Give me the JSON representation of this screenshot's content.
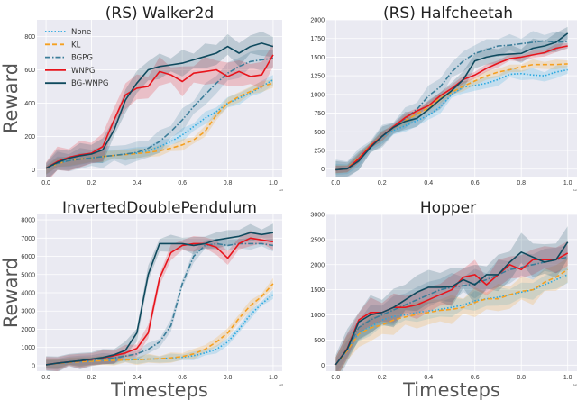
{
  "chart_data": [
    {
      "type": "line",
      "title": "(RS) Walker2d",
      "xlabel": "",
      "ylabel": "Reward",
      "x_offset_label": "1e6",
      "xlim": [
        -0.04,
        1.04
      ],
      "ylim": [
        -40,
        900
      ],
      "xticks": [
        0.0,
        0.2,
        0.4,
        0.6,
        0.8,
        1.0
      ],
      "yticks": [
        0,
        200,
        400,
        600,
        800
      ],
      "grid": true,
      "legend": "top-left",
      "x": [
        0,
        0.05,
        0.1,
        0.15,
        0.2,
        0.25,
        0.3,
        0.35,
        0.4,
        0.45,
        0.5,
        0.55,
        0.6,
        0.65,
        0.7,
        0.75,
        0.8,
        0.85,
        0.9,
        0.95,
        1.0
      ],
      "series": [
        {
          "name": "None",
          "values": [
            10,
            40,
            55,
            65,
            72,
            80,
            87,
            95,
            100,
            115,
            140,
            170,
            210,
            260,
            310,
            350,
            400,
            430,
            460,
            500,
            540
          ],
          "spread": 40
        },
        {
          "name": "KL",
          "values": [
            10,
            38,
            55,
            65,
            72,
            80,
            87,
            92,
            98,
            105,
            115,
            130,
            150,
            180,
            230,
            330,
            400,
            440,
            470,
            500,
            520
          ],
          "spread": 35
        },
        {
          "name": "BGPG",
          "values": [
            10,
            40,
            55,
            65,
            72,
            80,
            87,
            95,
            105,
            130,
            170,
            230,
            300,
            380,
            450,
            520,
            580,
            620,
            650,
            660,
            670
          ],
          "spread": 70
        },
        {
          "name": "WNPG",
          "values": [
            10,
            50,
            75,
            90,
            100,
            140,
            300,
            450,
            490,
            500,
            590,
            570,
            530,
            580,
            590,
            600,
            560,
            590,
            560,
            570,
            690
          ],
          "spread": 90
        },
        {
          "name": "BG-WNPG",
          "values": [
            10,
            45,
            70,
            85,
            95,
            120,
            240,
            420,
            520,
            600,
            620,
            630,
            640,
            660,
            680,
            700,
            740,
            700,
            740,
            760,
            740
          ],
          "spread": 80
        }
      ]
    },
    {
      "type": "line",
      "title": "(RS) Halfcheetah",
      "xlabel": "",
      "ylabel": "",
      "x_offset_label": "1e6",
      "xlim": [
        -0.04,
        1.04
      ],
      "ylim": [
        -100,
        2000
      ],
      "xticks": [
        0.0,
        0.2,
        0.4,
        0.6,
        0.8,
        1.0
      ],
      "yticks": [
        0,
        250,
        500,
        750,
        1000,
        1250,
        1500,
        1750,
        2000
      ],
      "grid": true,
      "x": [
        0,
        0.05,
        0.1,
        0.15,
        0.2,
        0.25,
        0.3,
        0.35,
        0.4,
        0.45,
        0.5,
        0.55,
        0.6,
        0.65,
        0.7,
        0.75,
        0.8,
        0.85,
        0.9,
        0.95,
        1.0
      ],
      "series": [
        {
          "name": "None",
          "values": [
            -10,
            5,
            120,
            300,
            430,
            520,
            580,
            650,
            720,
            830,
            1000,
            1100,
            1120,
            1150,
            1200,
            1270,
            1280,
            1260,
            1250,
            1300,
            1330
          ],
          "spread": 90
        },
        {
          "name": "KL",
          "values": [
            -10,
            10,
            150,
            320,
            440,
            560,
            650,
            740,
            820,
            950,
            1030,
            1110,
            1180,
            1250,
            1300,
            1330,
            1370,
            1400,
            1400,
            1400,
            1410
          ],
          "spread": 70
        },
        {
          "name": "BGPG",
          "values": [
            -10,
            5,
            130,
            300,
            440,
            560,
            680,
            800,
            980,
            1100,
            1300,
            1450,
            1550,
            1600,
            1650,
            1660,
            1680,
            1700,
            1720,
            1700,
            1710
          ],
          "spread": 150
        },
        {
          "name": "WNPG",
          "values": [
            -10,
            5,
            140,
            310,
            440,
            570,
            690,
            780,
            850,
            980,
            1080,
            1200,
            1260,
            1350,
            1420,
            1480,
            1500,
            1530,
            1560,
            1620,
            1650
          ],
          "spread": 60
        },
        {
          "name": "BG-WNPG",
          "values": [
            -10,
            5,
            110,
            290,
            440,
            560,
            640,
            680,
            800,
            930,
            1050,
            1200,
            1450,
            1500,
            1530,
            1540,
            1550,
            1620,
            1650,
            1700,
            1820
          ],
          "spread": 130
        }
      ]
    },
    {
      "type": "line",
      "title": "InvertedDoublePendulum",
      "xlabel": "Timesteps",
      "ylabel": "Reward",
      "x_offset_label": "1e6",
      "xlim": [
        -0.04,
        1.04
      ],
      "ylim": [
        -300,
        8300
      ],
      "xticks": [
        0.0,
        0.2,
        0.4,
        0.6,
        0.8,
        1.0
      ],
      "yticks": [
        0,
        1000,
        2000,
        3000,
        4000,
        5000,
        6000,
        7000,
        8000
      ],
      "grid": true,
      "x": [
        0,
        0.05,
        0.1,
        0.15,
        0.2,
        0.25,
        0.3,
        0.35,
        0.4,
        0.45,
        0.5,
        0.55,
        0.6,
        0.65,
        0.7,
        0.75,
        0.8,
        0.85,
        0.9,
        0.95,
        1.0
      ],
      "series": [
        {
          "name": "None",
          "values": [
            50,
            120,
            180,
            220,
            250,
            280,
            300,
            320,
            340,
            360,
            380,
            420,
            460,
            550,
            700,
            900,
            1300,
            2000,
            2800,
            3400,
            3900
          ],
          "spread": 250
        },
        {
          "name": "KL",
          "values": [
            50,
            120,
            180,
            220,
            250,
            280,
            300,
            320,
            340,
            360,
            380,
            430,
            500,
            650,
            900,
            1300,
            1800,
            2600,
            3300,
            3800,
            4500
          ],
          "spread": 300
        },
        {
          "name": "BGPG",
          "values": [
            50,
            130,
            200,
            260,
            310,
            370,
            430,
            530,
            650,
            900,
            1300,
            2200,
            4500,
            6000,
            6600,
            6700,
            6600,
            6700,
            6700,
            6700,
            6600
          ],
          "spread": 350
        },
        {
          "name": "WNPG",
          "values": [
            50,
            140,
            210,
            270,
            350,
            430,
            550,
            700,
            950,
            1800,
            4800,
            6200,
            6600,
            6700,
            6700,
            6500,
            5900,
            6700,
            7000,
            6900,
            6800
          ],
          "spread": 450
        },
        {
          "name": "BG-WNPG",
          "values": [
            50,
            140,
            210,
            280,
            360,
            450,
            600,
            850,
            1800,
            5000,
            6700,
            6700,
            6700,
            6600,
            6700,
            6900,
            7000,
            7100,
            7300,
            7200,
            7300
          ],
          "spread": 500
        }
      ]
    },
    {
      "type": "line",
      "title": "Hopper",
      "xlabel": "Timesteps",
      "ylabel": "",
      "x_offset_label": "1e6",
      "xlim": [
        -0.04,
        1.04
      ],
      "ylim": [
        -120,
        3000
      ],
      "xticks": [
        0.0,
        0.2,
        0.4,
        0.6,
        0.8,
        1.0
      ],
      "yticks": [
        0,
        500,
        1000,
        1500,
        2000,
        2500,
        3000
      ],
      "grid": true,
      "x": [
        0,
        0.05,
        0.1,
        0.15,
        0.2,
        0.25,
        0.3,
        0.35,
        0.4,
        0.45,
        0.5,
        0.55,
        0.6,
        0.65,
        0.7,
        0.75,
        0.8,
        0.85,
        0.9,
        0.95,
        1.0
      ],
      "series": [
        {
          "name": "None",
          "values": [
            10,
            300,
            650,
            760,
            900,
            970,
            1000,
            1050,
            1080,
            1110,
            1150,
            1200,
            1280,
            1320,
            1350,
            1400,
            1450,
            1500,
            1600,
            1700,
            1800
          ],
          "spread": 200
        },
        {
          "name": "KL",
          "values": [
            10,
            290,
            620,
            740,
            800,
            900,
            960,
            1010,
            1050,
            1090,
            1110,
            1150,
            1250,
            1320,
            1320,
            1400,
            1470,
            1500,
            1650,
            1750,
            1900
          ],
          "spread": 300
        },
        {
          "name": "BGPG",
          "values": [
            10,
            320,
            750,
            900,
            1000,
            1100,
            1200,
            1300,
            1400,
            1500,
            1550,
            1580,
            1620,
            1700,
            1800,
            1900,
            1950,
            2000,
            2050,
            2100,
            2150
          ],
          "spread": 300
        },
        {
          "name": "WNPG",
          "values": [
            10,
            330,
            900,
            1050,
            1050,
            1150,
            1150,
            1200,
            1300,
            1400,
            1500,
            1750,
            1800,
            1600,
            1800,
            2000,
            1900,
            2100,
            2100,
            2100,
            2230
          ],
          "spread": 300
        },
        {
          "name": "BG-WNPG",
          "values": [
            10,
            320,
            860,
            1000,
            1050,
            1150,
            1300,
            1450,
            1550,
            1550,
            1560,
            1700,
            1600,
            1800,
            1800,
            2050,
            2250,
            2150,
            2050,
            2100,
            2450
          ],
          "spread": 400
        }
      ]
    }
  ],
  "legend": {
    "entries": [
      "None",
      "KL",
      "BGPG",
      "WNPG",
      "BG-WNPG"
    ]
  },
  "styles": {
    "None": {
      "color": "#29a8e0",
      "dash": "1.5,2"
    },
    "KL": {
      "color": "#f5a020",
      "dash": "5,3"
    },
    "BGPG": {
      "color": "#3b7d99",
      "dash": "6,2,1.5,2"
    },
    "WNPG": {
      "color": "#e8141c",
      "dash": ""
    },
    "BG-WNPG": {
      "color": "#0f4a5e",
      "dash": ""
    }
  },
  "plot_background": "#eaeaf2"
}
